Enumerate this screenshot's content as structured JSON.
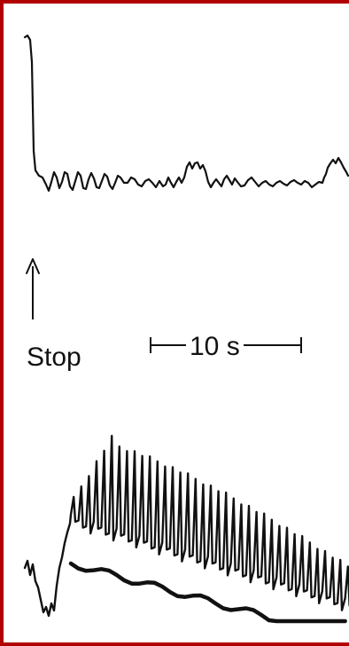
{
  "figure": {
    "stop_label": "Stop",
    "scale_bar_label": "10 s",
    "frame_color": "#b00000"
  }
}
